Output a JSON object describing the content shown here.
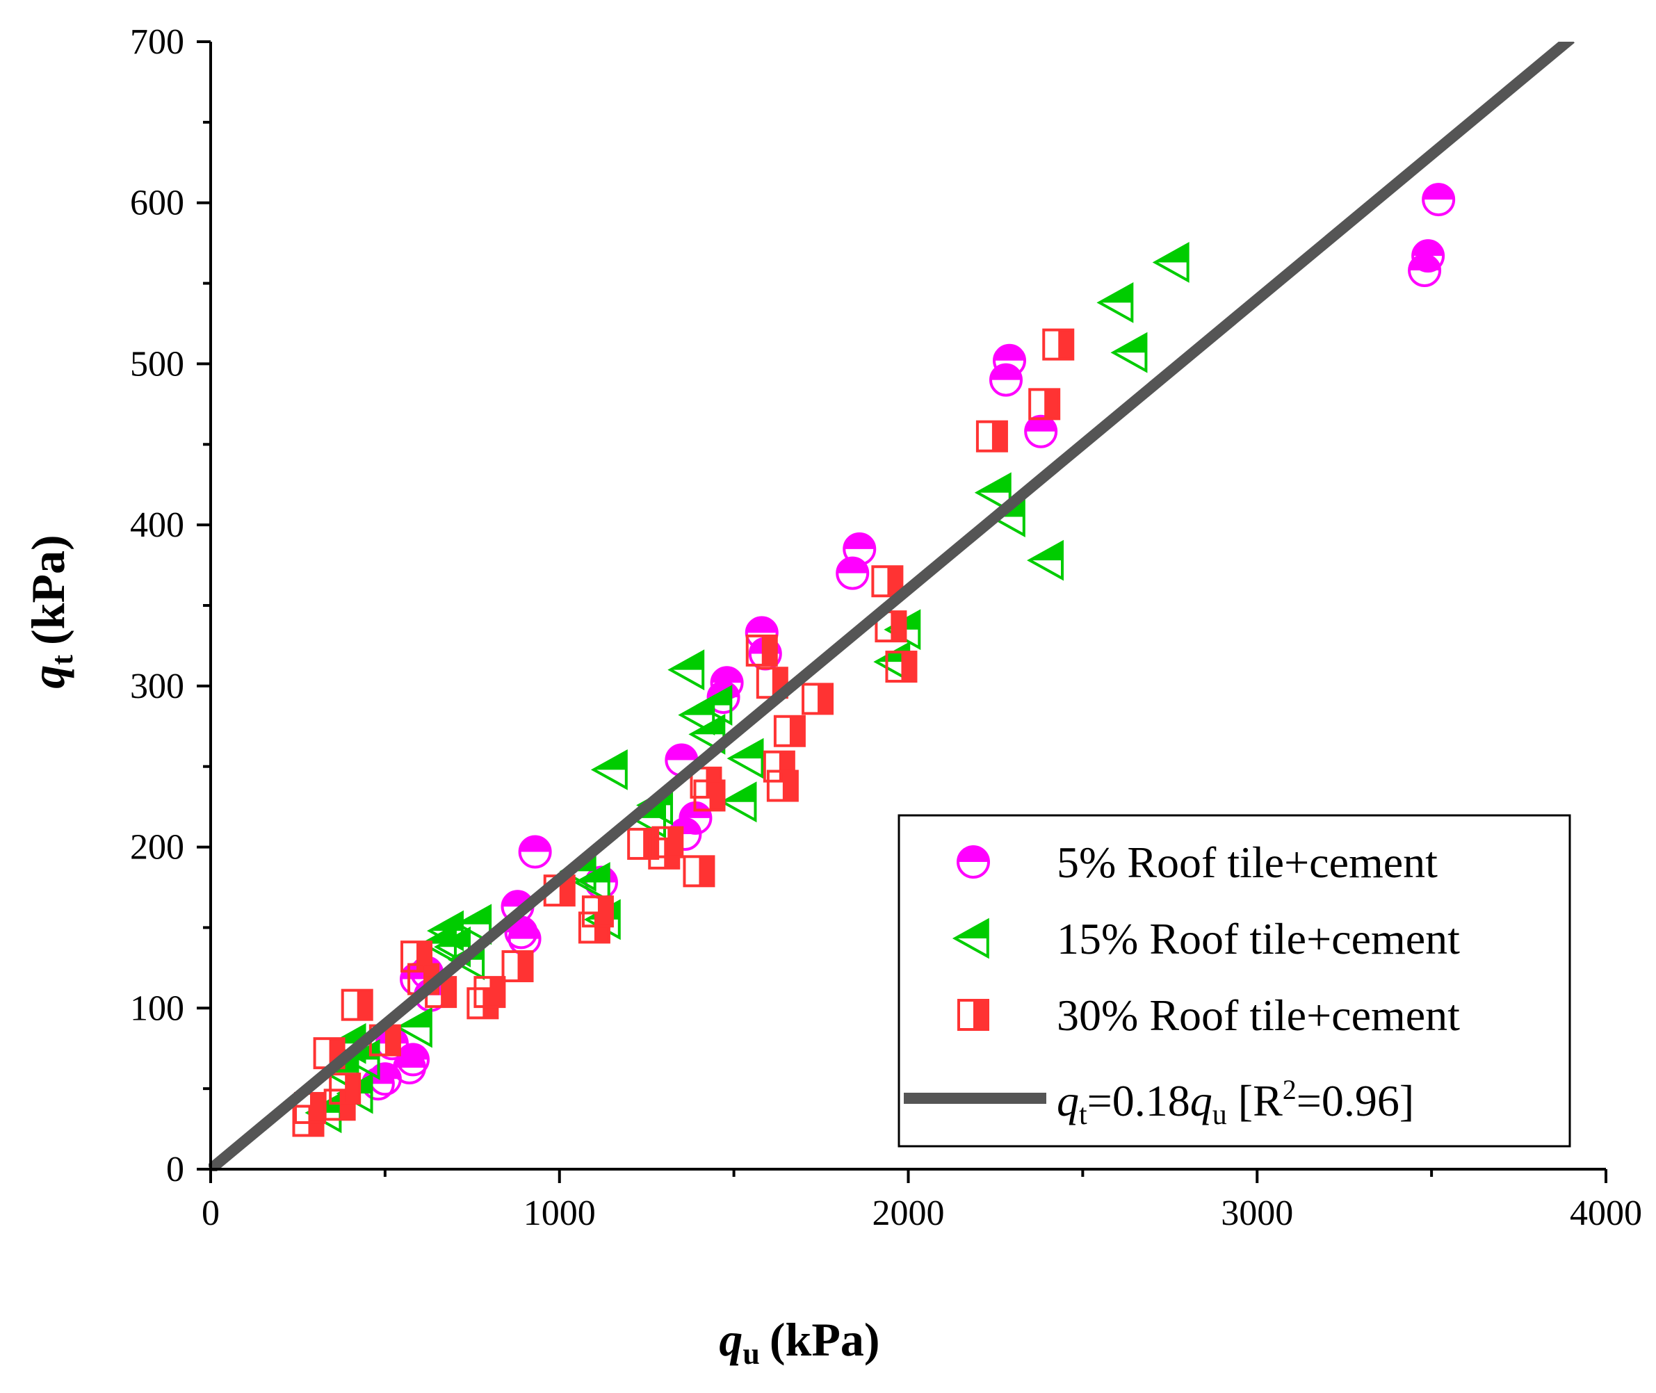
{
  "chart_data": {
    "type": "scatter",
    "xlabel": {
      "main": "q",
      "sub": "u",
      "unit": "(kPa)"
    },
    "ylabel": {
      "main": "q",
      "sub": "t",
      "unit": "(kPa)"
    },
    "xlim": [
      0,
      4000
    ],
    "ylim": [
      0,
      700
    ],
    "xticks": [
      0,
      1000,
      2000,
      3000,
      4000
    ],
    "yticks": [
      0,
      100,
      200,
      300,
      400,
      500,
      600,
      700
    ],
    "legend_position": "bottom-right",
    "colors": {
      "pink": "#ff00ff",
      "green": "#00cc00",
      "red": "#ff3333",
      "line": "#555555"
    },
    "series": [
      {
        "name": "5% Roof tile+cement",
        "marker": "half-filled-circle",
        "color": "#ff00ff",
        "points": [
          [
            480,
            53
          ],
          [
            500,
            56
          ],
          [
            520,
            78
          ],
          [
            570,
            63
          ],
          [
            580,
            68
          ],
          [
            590,
            118
          ],
          [
            620,
            122
          ],
          [
            630,
            108
          ],
          [
            880,
            163
          ],
          [
            890,
            147
          ],
          [
            900,
            143
          ],
          [
            930,
            197
          ],
          [
            1120,
            178
          ],
          [
            1350,
            254
          ],
          [
            1360,
            208
          ],
          [
            1390,
            218
          ],
          [
            1470,
            293
          ],
          [
            1480,
            302
          ],
          [
            1580,
            333
          ],
          [
            1590,
            320
          ],
          [
            1840,
            370
          ],
          [
            1860,
            385
          ],
          [
            2280,
            490
          ],
          [
            2290,
            502
          ],
          [
            2380,
            458
          ],
          [
            3480,
            558
          ],
          [
            3490,
            567
          ],
          [
            3520,
            602
          ]
        ]
      },
      {
        "name": "15% Roof tile+cement",
        "marker": "left-triangle",
        "color": "#00cc00",
        "points": [
          [
            330,
            35
          ],
          [
            380,
            60
          ],
          [
            400,
            78
          ],
          [
            420,
            47
          ],
          [
            440,
            68
          ],
          [
            590,
            88
          ],
          [
            660,
            140
          ],
          [
            680,
            148
          ],
          [
            700,
            138
          ],
          [
            740,
            130
          ],
          [
            760,
            152
          ],
          [
            1060,
            185
          ],
          [
            1100,
            178
          ],
          [
            1130,
            155
          ],
          [
            1150,
            248
          ],
          [
            1260,
            218
          ],
          [
            1280,
            226
          ],
          [
            1370,
            310
          ],
          [
            1400,
            282
          ],
          [
            1430,
            270
          ],
          [
            1450,
            288
          ],
          [
            1520,
            228
          ],
          [
            1540,
            255
          ],
          [
            1960,
            315
          ],
          [
            1990,
            335
          ],
          [
            2250,
            420
          ],
          [
            2290,
            405
          ],
          [
            2400,
            378
          ],
          [
            2600,
            538
          ],
          [
            2640,
            507
          ],
          [
            2760,
            563
          ]
        ]
      },
      {
        "name": "30% Roof tile+cement",
        "marker": "half-filled-square",
        "color": "#ff3333",
        "points": [
          [
            280,
            30
          ],
          [
            285,
            38
          ],
          [
            340,
            72
          ],
          [
            370,
            40
          ],
          [
            385,
            50
          ],
          [
            420,
            102
          ],
          [
            500,
            80
          ],
          [
            590,
            132
          ],
          [
            610,
            118
          ],
          [
            660,
            110
          ],
          [
            780,
            103
          ],
          [
            800,
            110
          ],
          [
            880,
            126
          ],
          [
            1000,
            173
          ],
          [
            1100,
            150
          ],
          [
            1110,
            160
          ],
          [
            1240,
            202
          ],
          [
            1300,
            196
          ],
          [
            1310,
            203
          ],
          [
            1400,
            185
          ],
          [
            1420,
            240
          ],
          [
            1430,
            232
          ],
          [
            1580,
            322
          ],
          [
            1610,
            302
          ],
          [
            1630,
            250
          ],
          [
            1640,
            238
          ],
          [
            1660,
            272
          ],
          [
            1740,
            292
          ],
          [
            1940,
            365
          ],
          [
            1950,
            337
          ],
          [
            1980,
            312
          ],
          [
            2240,
            455
          ],
          [
            2390,
            475
          ],
          [
            2430,
            512
          ]
        ]
      }
    ],
    "fit_line": {
      "label_main": "q",
      "label_sub": "t",
      "label_mid": "=0.18",
      "label_main2": "q",
      "label_sub2": "u",
      "label_r": " [R",
      "label_sup": "2",
      "label_end": "=0.96]",
      "slope": 0.18,
      "x_range": [
        0,
        3900
      ]
    }
  }
}
